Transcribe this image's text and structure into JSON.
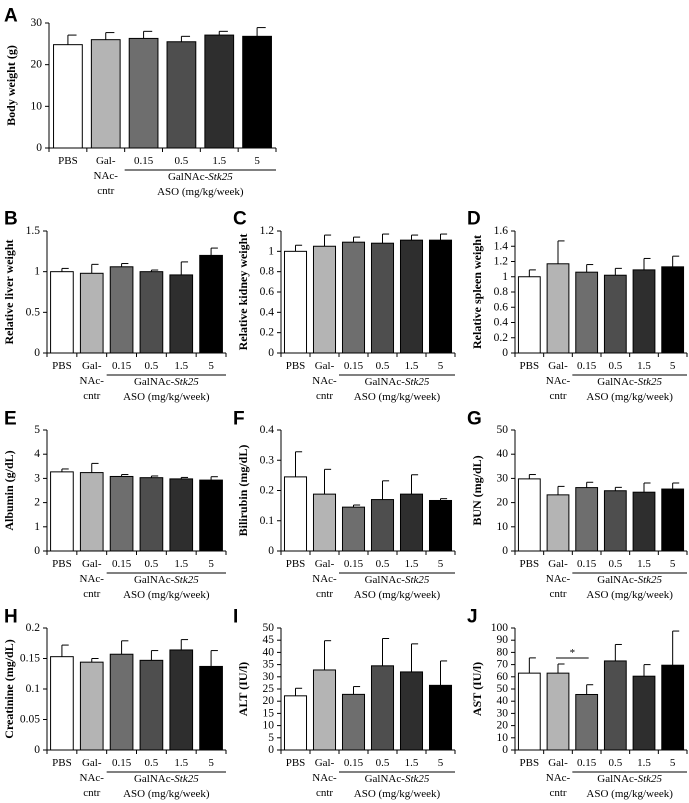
{
  "colors": {
    "bar_fills": [
      "#ffffff",
      "#b4b4b4",
      "#6e6e6e",
      "#4e4e4e",
      "#2e2e2e",
      "#000000"
    ],
    "stroke": "#000000"
  },
  "shared": {
    "categories": [
      "PBS",
      "Gal-NAc-cntr",
      "0.15",
      "0.5",
      "1.5",
      "5"
    ],
    "control_label_lines": [
      "Gal-",
      "NAc-",
      "cntr"
    ],
    "group_label_prefix": "GalNAc-",
    "group_label_gene": "Stk25",
    "group_label_units": "ASO (mg/kg/week)"
  },
  "chart_data": [
    {
      "id": "A",
      "type": "bar",
      "panel_label": "A",
      "title": "",
      "xlabel": "",
      "ylabel": "Body weight (g)",
      "ylim": [
        0,
        30
      ],
      "yticks": [
        "0",
        "10",
        "20",
        "30"
      ],
      "categories": [
        "PBS",
        "Gal-NAc-cntr",
        "0.15",
        "0.5",
        "1.5",
        "5"
      ],
      "values": [
        24.8,
        26.0,
        26.3,
        25.5,
        27.1,
        26.8
      ],
      "errors": [
        2.3,
        1.7,
        1.7,
        1.3,
        0.9,
        2.1
      ],
      "significance": []
    },
    {
      "id": "B",
      "type": "bar",
      "panel_label": "B",
      "title": "",
      "xlabel": "",
      "ylabel": "Relative liver weight",
      "ylim": [
        0,
        1.5
      ],
      "yticks": [
        "0",
        "0.5",
        "1",
        "1.5"
      ],
      "categories": [
        "PBS",
        "Gal-NAc-cntr",
        "0.15",
        "0.5",
        "1.5",
        "5"
      ],
      "values": [
        1.0,
        0.98,
        1.06,
        1.0,
        0.96,
        1.2
      ],
      "errors": [
        0.04,
        0.11,
        0.04,
        0.02,
        0.16,
        0.09
      ],
      "significance": []
    },
    {
      "id": "C",
      "type": "bar",
      "panel_label": "C",
      "title": "",
      "xlabel": "",
      "ylabel": "Relative kidney weight",
      "ylim": [
        0,
        1.2
      ],
      "yticks": [
        "0",
        "0.2",
        "0.4",
        "0.6",
        "0.8",
        "1",
        "1.2"
      ],
      "categories": [
        "PBS",
        "Gal-NAc-cntr",
        "0.15",
        "0.5",
        "1.5",
        "5"
      ],
      "values": [
        1.0,
        1.05,
        1.09,
        1.08,
        1.11,
        1.11
      ],
      "errors": [
        0.06,
        0.11,
        0.05,
        0.09,
        0.05,
        0.06
      ],
      "significance": []
    },
    {
      "id": "D",
      "type": "bar",
      "panel_label": "D",
      "title": "",
      "xlabel": "",
      "ylabel": "Relative spleen weight",
      "ylim": [
        0,
        1.6
      ],
      "yticks": [
        "0",
        "0.2",
        "0.4",
        "0.6",
        "0.8",
        "1",
        "1.2",
        "1.4",
        "1.6"
      ],
      "categories": [
        "PBS",
        "Gal-NAc-cntr",
        "0.15",
        "0.5",
        "1.5",
        "5"
      ],
      "values": [
        1.0,
        1.17,
        1.06,
        1.02,
        1.09,
        1.13
      ],
      "errors": [
        0.09,
        0.3,
        0.1,
        0.09,
        0.15,
        0.14
      ],
      "significance": []
    },
    {
      "id": "E",
      "type": "bar",
      "panel_label": "E",
      "title": "",
      "xlabel": "",
      "ylabel": "Albumin (g/dL)",
      "ylim": [
        0,
        5
      ],
      "yticks": [
        "0",
        "1",
        "2",
        "3",
        "4",
        "5"
      ],
      "categories": [
        "PBS",
        "Gal-NAc-cntr",
        "0.15",
        "0.5",
        "1.5",
        "5"
      ],
      "values": [
        3.27,
        3.24,
        3.08,
        3.03,
        2.98,
        2.93
      ],
      "errors": [
        0.12,
        0.38,
        0.08,
        0.07,
        0.06,
        0.14
      ],
      "significance": []
    },
    {
      "id": "F",
      "type": "bar",
      "panel_label": "F",
      "title": "",
      "xlabel": "",
      "ylabel": "Bilirubin (mg/dL)",
      "ylim": [
        0,
        0.4
      ],
      "yticks": [
        "0",
        "0.1",
        "0.2",
        "0.3",
        "0.4"
      ],
      "categories": [
        "PBS",
        "Gal-NAc-cntr",
        "0.15",
        "0.5",
        "1.5",
        "5"
      ],
      "values": [
        0.245,
        0.188,
        0.145,
        0.17,
        0.188,
        0.167
      ],
      "errors": [
        0.083,
        0.082,
        0.007,
        0.062,
        0.064,
        0.006
      ],
      "significance": []
    },
    {
      "id": "G",
      "type": "bar",
      "panel_label": "G",
      "title": "",
      "xlabel": "",
      "ylabel": "BUN (mg/dL)",
      "ylim": [
        0,
        50
      ],
      "yticks": [
        "0",
        "10",
        "20",
        "30",
        "40",
        "50"
      ],
      "categories": [
        "PBS",
        "Gal-NAc-cntr",
        "0.15",
        "0.5",
        "1.5",
        "5"
      ],
      "values": [
        29.8,
        23.2,
        26.2,
        24.9,
        24.3,
        25.6
      ],
      "errors": [
        1.8,
        3.5,
        2.2,
        1.4,
        3.8,
        2.5
      ],
      "significance": []
    },
    {
      "id": "H",
      "type": "bar",
      "panel_label": "H",
      "title": "",
      "xlabel": "",
      "ylabel": "Creatinine (mg/dL)",
      "ylim": [
        0,
        0.2
      ],
      "yticks": [
        "0",
        "0.05",
        "0.1",
        "0.15",
        "0.2"
      ],
      "categories": [
        "PBS",
        "Gal-NAc-cntr",
        "0.15",
        "0.5",
        "1.5",
        "5"
      ],
      "values": [
        0.153,
        0.144,
        0.157,
        0.147,
        0.164,
        0.137
      ],
      "errors": [
        0.019,
        0.006,
        0.022,
        0.016,
        0.017,
        0.026
      ],
      "significance": []
    },
    {
      "id": "I",
      "type": "bar",
      "panel_label": "I",
      "title": "",
      "xlabel": "",
      "ylabel": "ALT (IU/l)",
      "ylim": [
        0,
        50
      ],
      "yticks": [
        "0",
        "5",
        "10",
        "15",
        "20",
        "25",
        "30",
        "35",
        "40",
        "45",
        "50"
      ],
      "categories": [
        "PBS",
        "Gal-NAc-cntr",
        "0.15",
        "0.5",
        "1.5",
        "5"
      ],
      "values": [
        22.2,
        32.8,
        22.8,
        34.5,
        32.0,
        26.5
      ],
      "errors": [
        3.1,
        12.0,
        3.2,
        11.2,
        11.5,
        10.0
      ],
      "significance": []
    },
    {
      "id": "J",
      "type": "bar",
      "panel_label": "J",
      "title": "",
      "xlabel": "",
      "ylabel": "AST (IU/l)",
      "ylim": [
        0,
        100
      ],
      "yticks": [
        "0",
        "10",
        "20",
        "30",
        "40",
        "50",
        "60",
        "70",
        "80",
        "90",
        "100"
      ],
      "categories": [
        "PBS",
        "Gal-NAc-cntr",
        "0.15",
        "0.5",
        "1.5",
        "5"
      ],
      "values": [
        63.0,
        63.0,
        45.5,
        73.0,
        60.5,
        69.5
      ],
      "errors": [
        12.5,
        7.5,
        8.0,
        13.5,
        9.5,
        28.0
      ],
      "significance": [
        {
          "from": 1,
          "to": 2,
          "label": "*"
        }
      ]
    }
  ]
}
